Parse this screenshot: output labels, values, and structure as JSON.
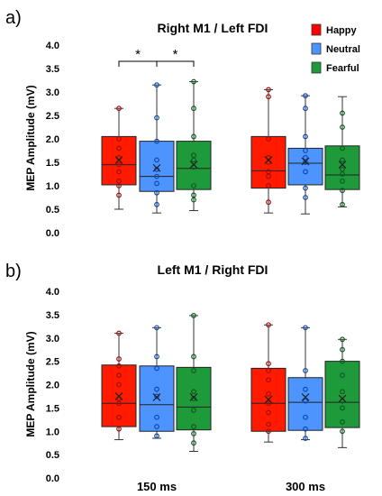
{
  "chart_data": [
    {
      "type": "box",
      "panel_label": "a)",
      "title": "Right M1 / Left FDI",
      "ylabel": "MEP Amplitude (mV)",
      "ylim": [
        0,
        4
      ],
      "yticks": [
        "0.0",
        "0.5",
        "1.0",
        "1.5",
        "2.0",
        "2.5",
        "3.0",
        "3.5",
        "4.0"
      ],
      "legend": {
        "position": "top-right",
        "entries": [
          {
            "name": "Happy",
            "color": "#ff0000"
          },
          {
            "name": "Neutral",
            "color": "#4d94ff"
          },
          {
            "name": "Fearful",
            "color": "#1f9a3a"
          }
        ]
      },
      "significance": [
        {
          "from": "Happy",
          "to": "Neutral",
          "group": "150 ms",
          "label": "*"
        },
        {
          "from": "Neutral",
          "to": "Fearful",
          "group": "150 ms",
          "label": "*"
        }
      ],
      "groups": [
        {
          "name": "150 ms",
          "series": [
            {
              "name": "Happy",
              "min": 0.5,
              "q1": 1.02,
              "median": 1.45,
              "q3": 2.05,
              "max": 2.65,
              "mean": 1.55,
              "points": [
                0.8,
                1.0,
                1.1,
                1.3,
                1.45,
                1.6,
                1.8,
                2.0,
                2.65
              ]
            },
            {
              "name": "Neutral",
              "min": 0.42,
              "q1": 0.88,
              "median": 1.2,
              "q3": 1.95,
              "max": 3.15,
              "mean": 1.38,
              "points": [
                0.6,
                0.85,
                1.05,
                1.2,
                1.35,
                1.55,
                1.95,
                2.45,
                3.15
              ]
            },
            {
              "name": "Fearful",
              "min": 0.47,
              "q1": 0.92,
              "median": 1.37,
              "q3": 1.95,
              "max": 3.22,
              "mean": 1.45,
              "points": [
                0.7,
                0.8,
                1.0,
                1.4,
                1.55,
                1.65,
                2.05,
                2.65,
                3.22
              ]
            }
          ]
        },
        {
          "name": "300 ms",
          "series": [
            {
              "name": "Happy",
              "min": 0.42,
              "q1": 0.95,
              "median": 1.32,
              "q3": 2.05,
              "max": 3.05,
              "mean": 1.55,
              "points": [
                0.65,
                1.0,
                1.2,
                1.3,
                1.5,
                1.6,
                2.0,
                2.9,
                3.05
              ]
            },
            {
              "name": "Neutral",
              "min": 0.4,
              "q1": 1.02,
              "median": 1.48,
              "q3": 1.8,
              "max": 2.92,
              "mean": 1.52,
              "points": [
                0.75,
                0.95,
                1.3,
                1.5,
                1.6,
                1.75,
                2.05,
                2.65,
                2.92
              ]
            },
            {
              "name": "Fearful",
              "min": 0.55,
              "q1": 0.92,
              "median": 1.23,
              "q3": 1.85,
              "max": 2.9,
              "mean": 1.45,
              "points": [
                0.6,
                0.9,
                1.1,
                1.25,
                1.35,
                1.55,
                1.8,
                2.25,
                2.55
              ]
            }
          ]
        }
      ]
    },
    {
      "type": "box",
      "panel_label": "b)",
      "title": "Left M1 / Right FDI",
      "ylabel": "MEP Amplitude (mV)",
      "ylim": [
        0,
        4
      ],
      "yticks": [
        "0.0",
        "0.5",
        "1.0",
        "1.5",
        "2.0",
        "2.5",
        "3.0",
        "3.5",
        "4.0"
      ],
      "categories": [
        "150 ms",
        "300 ms"
      ],
      "groups": [
        {
          "name": "150 ms",
          "series": [
            {
              "name": "Happy",
              "min": 0.82,
              "q1": 1.1,
              "median": 1.6,
              "q3": 2.42,
              "max": 3.1,
              "mean": 1.75,
              "points": [
                1.05,
                1.3,
                1.6,
                1.7,
                2.0,
                2.2,
                2.4,
                2.55,
                3.1
              ]
            },
            {
              "name": "Neutral",
              "min": 0.85,
              "q1": 1.0,
              "median": 1.57,
              "q3": 2.4,
              "max": 3.22,
              "mean": 1.73,
              "points": [
                0.9,
                1.1,
                1.3,
                1.75,
                1.9,
                2.35,
                2.6,
                3.22
              ]
            },
            {
              "name": "Fearful",
              "min": 0.57,
              "q1": 1.03,
              "median": 1.52,
              "q3": 2.37,
              "max": 3.48,
              "mean": 1.73,
              "points": [
                0.75,
                0.95,
                1.1,
                1.45,
                1.7,
                1.85,
                2.3,
                2.6,
                3.48
              ]
            }
          ]
        },
        {
          "name": "300 ms",
          "series": [
            {
              "name": "Happy",
              "min": 0.77,
              "q1": 1.0,
              "median": 1.6,
              "q3": 2.35,
              "max": 3.28,
              "mean": 1.68,
              "points": [
                1.0,
                1.15,
                1.4,
                1.6,
                1.8,
                2.1,
                2.3,
                2.45,
                3.28
              ]
            },
            {
              "name": "Neutral",
              "min": 0.82,
              "q1": 1.02,
              "median": 1.62,
              "q3": 2.15,
              "max": 3.22,
              "mean": 1.73,
              "points": [
                0.85,
                1.05,
                1.3,
                1.65,
                1.9,
                2.3,
                3.22
              ]
            },
            {
              "name": "Fearful",
              "min": 0.65,
              "q1": 1.08,
              "median": 1.62,
              "q3": 2.5,
              "max": 2.97,
              "mean": 1.7,
              "points": [
                1.0,
                1.2,
                1.5,
                1.65,
                1.85,
                2.2,
                2.5,
                2.75,
                2.97
              ]
            }
          ]
        }
      ]
    }
  ]
}
